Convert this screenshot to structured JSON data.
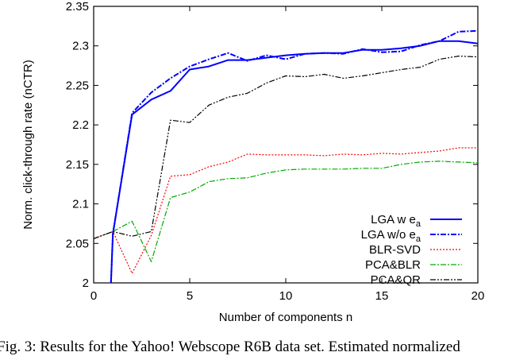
{
  "caption": "Fig. 3: Results for the Yahoo! Webscope R6B data set. Estimated normalized",
  "chart_data": {
    "type": "line",
    "title": "",
    "xlabel": "Number of components n",
    "ylabel": "Norm. click-through rate (nCTR)",
    "xlim": [
      0,
      20
    ],
    "ylim": [
      2.0,
      2.35
    ],
    "xticks": [
      0,
      5,
      10,
      15,
      20
    ],
    "yticks": [
      2,
      2.05,
      2.1,
      2.15,
      2.2,
      2.25,
      2.3,
      2.35
    ],
    "grid": false,
    "legend_position": "bottom-right",
    "series": [
      {
        "name": "LGA w e_a",
        "color": "#0000ff",
        "dash": "solid",
        "x": [
          0.9,
          1,
          2,
          3,
          4,
          5,
          6,
          7,
          8,
          9,
          10,
          11,
          12,
          13,
          14,
          15,
          16,
          17,
          18,
          19,
          20
        ],
        "y": [
          2.0,
          2.062,
          2.213,
          2.232,
          2.243,
          2.27,
          2.274,
          2.282,
          2.282,
          2.285,
          2.288,
          2.29,
          2.291,
          2.291,
          2.295,
          2.295,
          2.297,
          2.3,
          2.306,
          2.306,
          2.303
        ]
      },
      {
        "name": "LGA w/o e_a",
        "color": "#0000ff",
        "dash": "dashdot",
        "x": [
          0.9,
          1,
          2,
          3,
          4,
          5,
          6,
          7,
          8,
          9,
          10,
          11,
          12,
          13,
          14,
          15,
          16,
          17,
          18,
          19,
          20
        ],
        "y": [
          2.0,
          2.062,
          2.215,
          2.241,
          2.259,
          2.274,
          2.283,
          2.291,
          2.281,
          2.288,
          2.283,
          2.29,
          2.291,
          2.29,
          2.296,
          2.292,
          2.293,
          2.301,
          2.306,
          2.318,
          2.319
        ]
      },
      {
        "name": "BLR-SVD",
        "color": "#ff0000",
        "dash": "dotted",
        "x": [
          0,
          1,
          2,
          3,
          4,
          5,
          6,
          7,
          8,
          9,
          10,
          11,
          12,
          13,
          14,
          15,
          16,
          17,
          18,
          19,
          20
        ],
        "y": [
          2.056,
          2.065,
          2.012,
          2.06,
          2.135,
          2.137,
          2.147,
          2.153,
          2.163,
          2.162,
          2.162,
          2.162,
          2.161,
          2.163,
          2.162,
          2.164,
          2.163,
          2.165,
          2.167,
          2.171,
          2.171
        ]
      },
      {
        "name": "PCA&BLR",
        "color": "#00aa00",
        "dash": "dashdot",
        "x": [
          0,
          1,
          2,
          3,
          4,
          5,
          6,
          7,
          8,
          9,
          10,
          11,
          12,
          13,
          14,
          15,
          16,
          17,
          18,
          19,
          20
        ],
        "y": [
          2.056,
          2.065,
          2.078,
          2.027,
          2.108,
          2.115,
          2.128,
          2.132,
          2.133,
          2.139,
          2.143,
          2.144,
          2.144,
          2.144,
          2.145,
          2.145,
          2.15,
          2.153,
          2.154,
          2.153,
          2.152
        ]
      },
      {
        "name": "PCA&QR",
        "color": "#000000",
        "dash": "dashdotdot",
        "x": [
          0,
          1,
          2,
          3,
          4,
          5,
          6,
          7,
          8,
          9,
          10,
          11,
          12,
          13,
          14,
          15,
          16,
          17,
          18,
          19,
          20
        ],
        "y": [
          2.056,
          2.065,
          2.059,
          2.065,
          2.206,
          2.203,
          2.225,
          2.235,
          2.24,
          2.253,
          2.262,
          2.261,
          2.264,
          2.259,
          2.262,
          2.266,
          2.27,
          2.273,
          2.283,
          2.287,
          2.286
        ]
      }
    ]
  }
}
